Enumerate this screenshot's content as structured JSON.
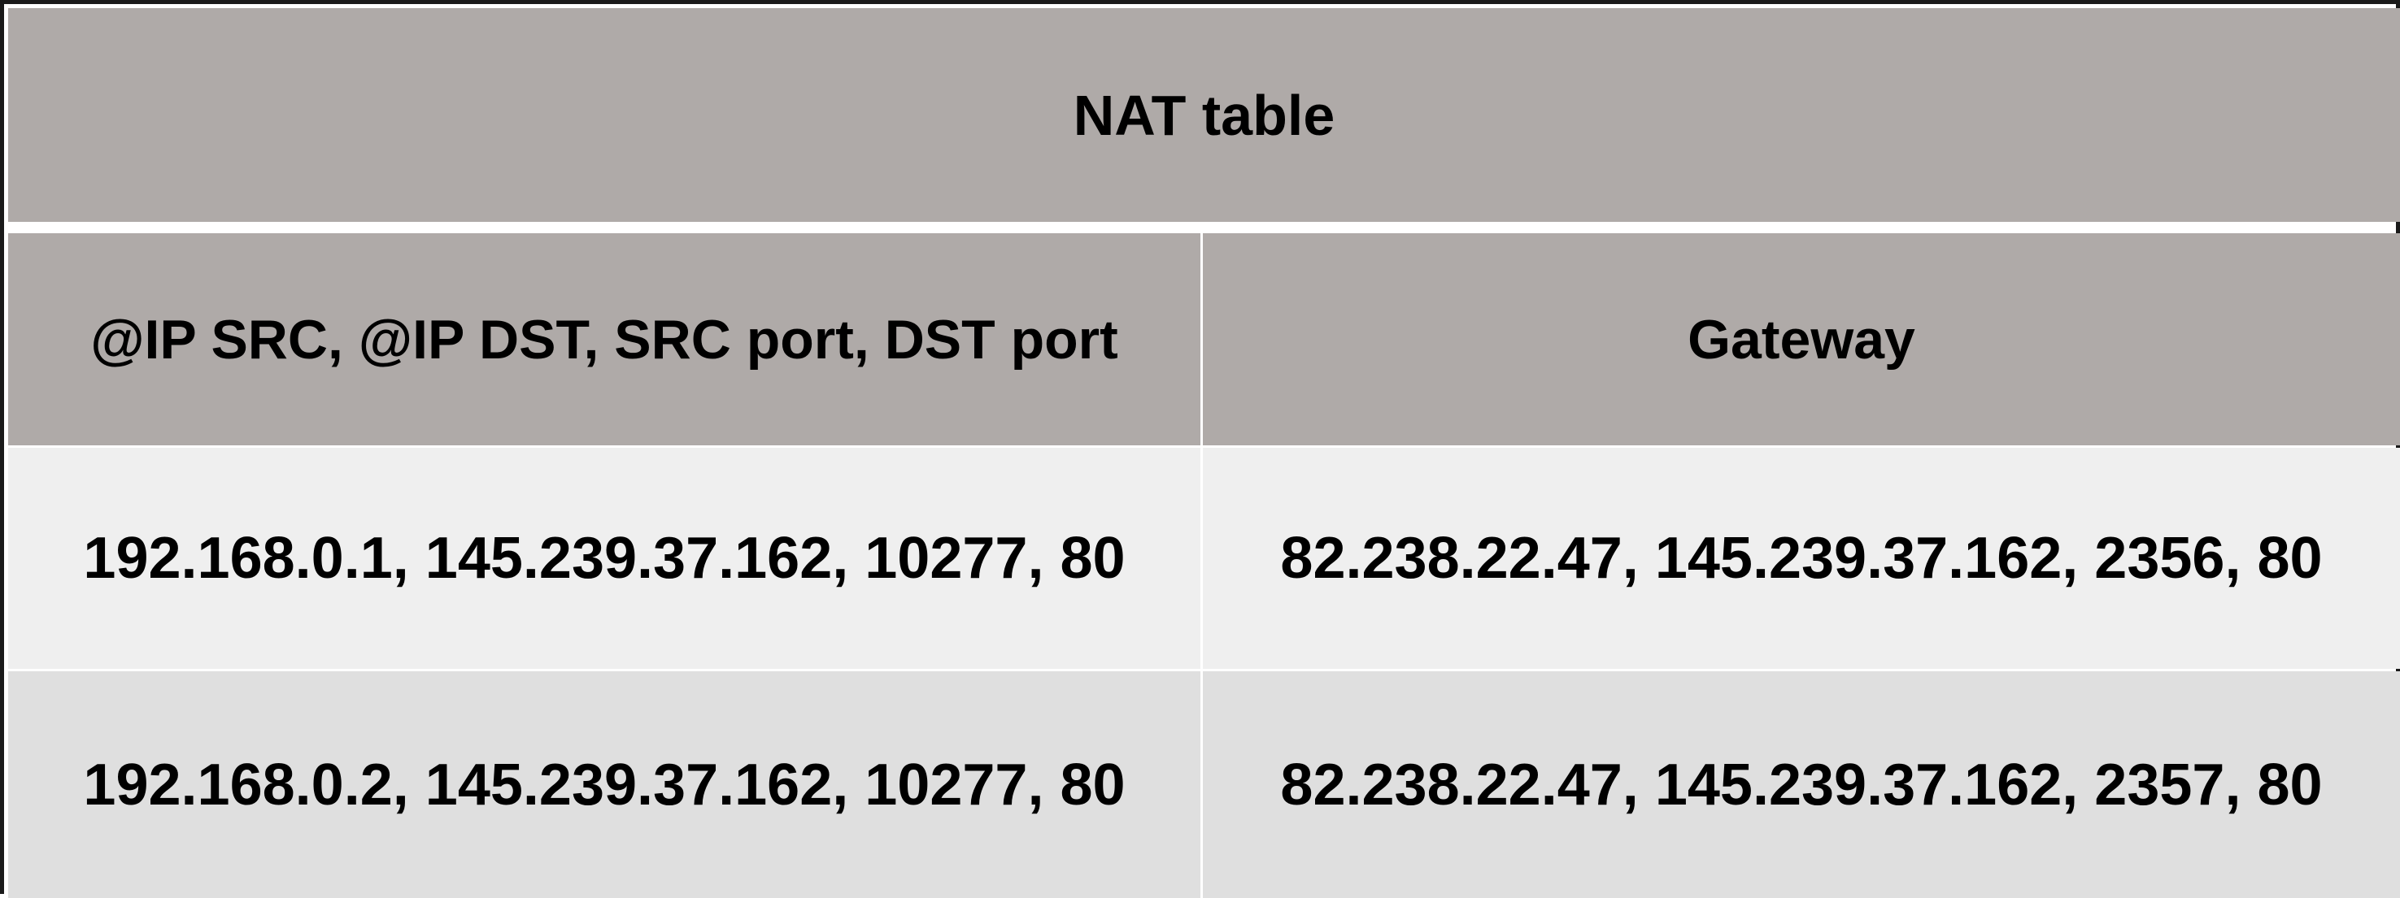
{
  "table": {
    "title": "NAT table",
    "headers": [
      "@IP SRC, @IP DST, SRC port, DST port",
      "Gateway"
    ],
    "rows": [
      [
        "192.168.0.1, 145.239.37.162, 10277, 80",
        "82.238.22.47, 145.239.37.162, 2356, 80"
      ],
      [
        "192.168.0.2, 145.239.37.162, 10277, 80",
        "82.238.22.47, 145.239.37.162, 2357, 80"
      ]
    ]
  },
  "colors": {
    "header_bg": "#afaaa8",
    "row_odd_bg": "#efefef",
    "row_even_bg": "#dfdfdf",
    "divider": "#ffffff",
    "border": "#1a1a1a",
    "text": "#000000"
  }
}
